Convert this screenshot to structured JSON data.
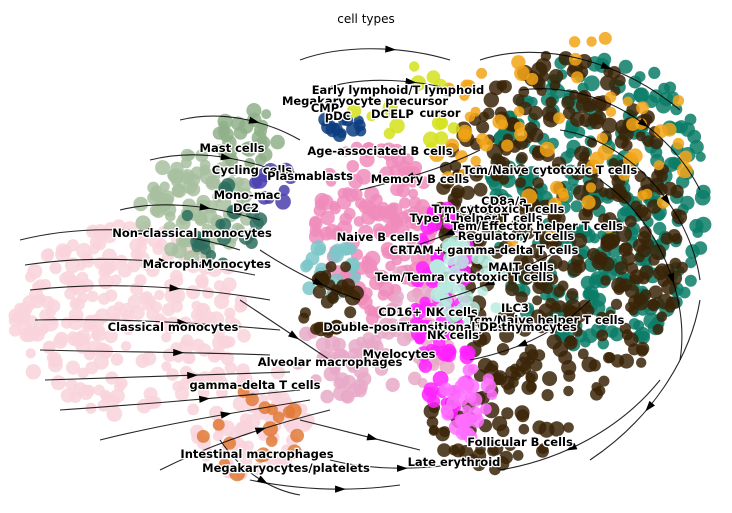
{
  "chart_data": {
    "type": "scatter",
    "title": "cell types",
    "xlabel": "",
    "ylabel": "",
    "grid": false,
    "axes": "off",
    "legend": "on data",
    "overlay": "velocity streamlines",
    "colors": {
      "Classical monocytes": "#f9d3dc",
      "Non-classical monocytes": "#a7c09f",
      "Mast cells": "#8fb08a",
      "Naive B cells": "#f08cbc",
      "Memory B cells": "#e7a9c8",
      "Tcm/Naive cytotoxic T cells": "#0a7d67",
      "Tcm/Naive helper T cells": "#3b2508",
      "Double-positive thymocytes": "#ff22ff",
      "Tem/Temra cytotoxic T cells": "#ff6fff",
      "Early lymphoid/T lymphoid": "#f2a516",
      "pDC": "#0c3d80",
      "Cycling cells": "#4a3fae",
      "CRTAM+ gamma-delta T cells": "#b9ece0",
      "Intestinal macrophages": "#e07a37",
      "Megakaryocyte precursor": "#d4e21c",
      "Plasmablasts": "#7cc7c9",
      "Mono-mac": "#2f6f5f"
    },
    "labels": [
      "Early lymphoid/T lymphoid",
      "Megakaryocyte precursor",
      "CMP",
      "pDC",
      "DC",
      "ELP",
      "cursor",
      "Mast cells",
      "Age-associated B cells",
      "Cycling cells",
      "Plasmablasts",
      "Memory B cells",
      "Tcm/Naive cytotoxic T cells",
      "Mono-mac",
      "DC2",
      "CD8a/a",
      "Trm cytotoxic T cells",
      "Type 1 helper T cells",
      "Tem/Effector helper T cells",
      "Non-classical monocytes",
      "Regulatory T cells",
      "Naive B cells",
      "CRTAM+ gamma-delta T cells",
      "Macrophages",
      "Monocytes",
      "MAIT cells",
      "Tem/Temra cytotoxic T cells",
      "ILC3",
      "CD16+ NK cells",
      "Tcm/Naive helper T cells",
      "Double-positive thymocytes",
      "Transitional DP thymocytes",
      "Classical monocytes",
      "NK cells",
      "Myelocytes",
      "Alveolar macrophages",
      "gamma-delta T cells",
      "Follicular B cells",
      "Intestinal macrophages",
      "Late erythroid",
      "Megakaryocytes/platelets"
    ]
  }
}
